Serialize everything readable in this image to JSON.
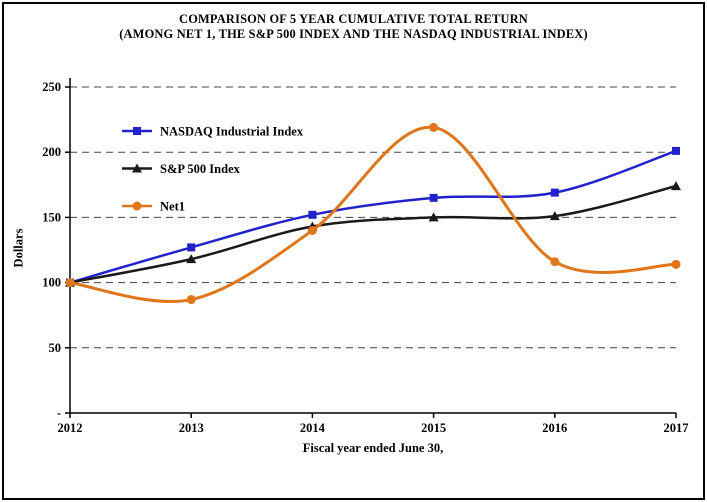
{
  "title": {
    "line1": "COMPARISON OF 5 YEAR CUMULATIVE TOTAL RETURN",
    "line2": "(AMONG NET 1, THE S&P 500 INDEX AND THE NASDAQ INDUSTRIAL INDEX)"
  },
  "chart_data": {
    "type": "line",
    "x": [
      2012,
      2013,
      2014,
      2015,
      2016,
      2017
    ],
    "series": [
      {
        "name": "NASDAQ Industrial Index",
        "color": "#2222cc",
        "marker": "square",
        "values": [
          100,
          127,
          152,
          165,
          169,
          201
        ]
      },
      {
        "name": "S&P 500 Index",
        "color": "#1a1a1a",
        "marker": "triangle",
        "values": [
          100,
          118,
          143,
          150,
          151,
          174
        ]
      },
      {
        "name": "Net1",
        "color": "#e0761a",
        "marker": "circle",
        "values": [
          100,
          87,
          140,
          219,
          116,
          114
        ]
      }
    ],
    "xlabel": "Fiscal year ended June 30,",
    "ylabel": "Dollars",
    "ylim": [
      0,
      250
    ],
    "yticks": [
      0,
      50,
      100,
      150,
      200,
      250
    ],
    "ytick_labels": [
      "-",
      "50",
      "100",
      "150",
      "200",
      "250"
    ],
    "grid": "dashed horizontal",
    "grid_color": "#444444",
    "axis_color": "#000000",
    "legend_position": "inside top-left",
    "smoothed_lines": true
  }
}
